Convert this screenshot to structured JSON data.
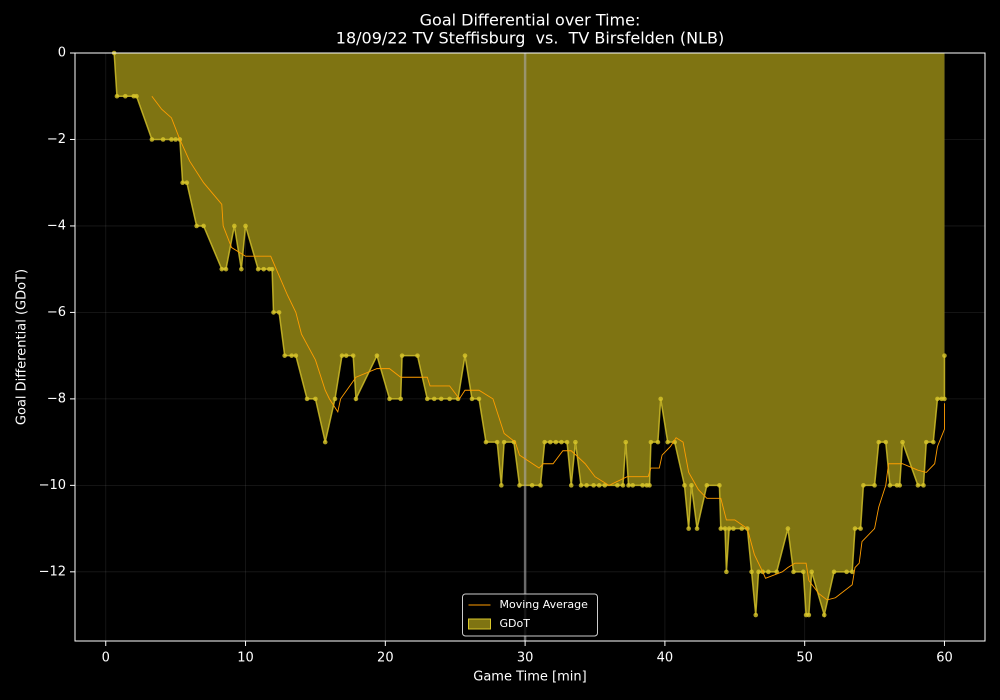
{
  "chart_data": {
    "type": "line",
    "title": "Goal Differential over Time:",
    "subtitle": "18/09/22 TV Steffisburg  vs.  TV Birsfelden (NLB)",
    "x_label": "Game Time [min]",
    "y_label": "Goal Differential (GDoT)",
    "xlim": [
      -2.2,
      62.9
    ],
    "ylim": [
      -13.6,
      0
    ],
    "xticks": [
      0,
      10,
      20,
      30,
      40,
      50,
      60
    ],
    "yticks": [
      0,
      {
        "value": -2,
        "label": "−2"
      },
      {
        "value": -4,
        "label": "−4"
      },
      {
        "value": -6,
        "label": "−6"
      },
      {
        "value": -8,
        "label": "−8"
      },
      {
        "value": -10,
        "label": "−10"
      },
      {
        "value": -12,
        "label": "−12"
      }
    ],
    "grid": true,
    "legend": "lower center",
    "vlines": [
      30
    ],
    "series": [
      {
        "name": "Moving Average",
        "color": "#ff9d00",
        "kind": "line",
        "x": [
          3.3,
          4.0,
          4.7,
          5.3,
          6.0,
          7.0,
          8.3,
          8.4,
          9.0,
          10.0,
          11.8,
          12.2,
          13.0,
          13.6,
          14.0,
          15.0,
          15.7,
          16.0,
          16.6,
          16.8,
          17.9,
          19.4,
          20.3,
          21.1,
          23.0,
          23.2,
          24.6,
          25.3,
          25.7,
          26.7,
          27.7,
          28.5,
          29.3,
          29.6,
          31.0,
          31.3,
          32.0,
          32.7,
          33.3,
          34.3,
          35.0,
          36.0,
          37.3,
          38.8,
          39.0,
          39.6,
          39.8,
          40.4,
          40.8,
          41.3,
          41.7,
          42.4,
          43.0,
          44.0,
          44.4,
          45.0,
          45.9,
          46.4,
          47.0,
          47.2,
          48.4,
          48.8,
          49.3,
          50.1,
          50.3,
          51.0,
          51.6,
          52.2,
          53.4,
          53.6,
          53.9,
          54.1,
          55.0,
          55.3,
          55.8,
          56.0,
          57.0,
          58.1,
          58.7,
          59.3,
          59.5,
          60.0,
          60.0
        ],
        "values": [
          -1.0,
          -1.3,
          -1.5,
          -2.0,
          -2.5,
          -3.0,
          -3.5,
          -4.0,
          -4.5,
          -4.7,
          -4.7,
          -5.0,
          -5.6,
          -6.0,
          -6.5,
          -7.1,
          -7.8,
          -8.0,
          -8.3,
          -8.0,
          -7.5,
          -7.3,
          -7.3,
          -7.5,
          -7.5,
          -7.7,
          -7.7,
          -8.0,
          -7.8,
          -7.8,
          -8.0,
          -8.8,
          -9.0,
          -9.3,
          -9.6,
          -9.5,
          -9.5,
          -9.2,
          -9.2,
          -9.5,
          -9.8,
          -10.0,
          -9.8,
          -9.8,
          -9.6,
          -9.6,
          -9.3,
          -9.1,
          -8.9,
          -9.0,
          -9.7,
          -10.1,
          -10.3,
          -10.3,
          -10.8,
          -10.8,
          -11.0,
          -11.6,
          -12.0,
          -12.15,
          -12.0,
          -11.9,
          -11.8,
          -11.8,
          -12.2,
          -12.5,
          -12.65,
          -12.6,
          -12.3,
          -11.9,
          -11.8,
          -11.3,
          -11.0,
          -10.5,
          -10.0,
          -9.5,
          -9.5,
          -9.65,
          -9.7,
          -9.5,
          -9.1,
          -8.7,
          -8.1
        ]
      },
      {
        "name": "GDoT",
        "color": "#d8c62a",
        "fill": "#7f7412",
        "kind": "area",
        "x": [
          0.6,
          0.8,
          1.4,
          2.0,
          2.2,
          3.3,
          4.1,
          4.7,
          5.0,
          5.3,
          5.5,
          5.8,
          6.5,
          7.0,
          8.3,
          8.6,
          9.2,
          9.7,
          10.0,
          10.9,
          11.3,
          11.7,
          11.9,
          12.0,
          12.4,
          12.8,
          13.3,
          13.6,
          14.4,
          15.0,
          15.7,
          16.4,
          16.9,
          17.2,
          17.7,
          17.9,
          19.4,
          20.3,
          21.1,
          21.2,
          22.3,
          23.0,
          23.5,
          24.0,
          24.6,
          25.2,
          25.7,
          26.2,
          26.7,
          27.2,
          28.0,
          28.3,
          28.5,
          29.2,
          29.6,
          30.5,
          31.1,
          31.4,
          31.8,
          32.2,
          32.6,
          33.0,
          33.3,
          33.6,
          34.0,
          34.4,
          34.9,
          35.3,
          35.7,
          36.6,
          37.0,
          37.2,
          37.4,
          37.7,
          38.4,
          38.7,
          38.9,
          39.0,
          39.5,
          39.7,
          40.2,
          40.7,
          41.4,
          41.7,
          41.9,
          42.3,
          43.0,
          43.9,
          44.0,
          44.3,
          44.4,
          44.6,
          44.9,
          45.5,
          45.9,
          46.2,
          46.5,
          46.7,
          47.0,
          47.4,
          48.0,
          48.8,
          49.2,
          49.9,
          50.1,
          50.3,
          50.5,
          51.4,
          52.1,
          53.0,
          53.4,
          53.6,
          54.0,
          54.2,
          55.0,
          55.3,
          55.8,
          56.1,
          56.6,
          56.8,
          57.0,
          58.1,
          58.5,
          58.7,
          59.2,
          59.5,
          59.8,
          60.0,
          60.0
        ],
        "values": [
          0,
          -1,
          -1,
          -1,
          -1,
          -2,
          -2,
          -2,
          -2,
          -2,
          -3,
          -3,
          -4,
          -4,
          -5,
          -5,
          -4,
          -5,
          -4,
          -5,
          -5,
          -5,
          -5,
          -6,
          -6,
          -7,
          -7,
          -7,
          -8,
          -8,
          -9,
          -8,
          -7,
          -7,
          -7,
          -8,
          -7,
          -8,
          -8,
          -7,
          -7,
          -8,
          -8,
          -8,
          -8,
          -8,
          -7,
          -8,
          -8,
          -9,
          -9,
          -10,
          -9,
          -9,
          -10,
          -10,
          -10,
          -9,
          -9,
          -9,
          -9,
          -9,
          -10,
          -9,
          -10,
          -10,
          -10,
          -10,
          -10,
          -10,
          -10,
          -9,
          -10,
          -10,
          -10,
          -10,
          -10,
          -9,
          -9,
          -8,
          -9,
          -9,
          -10,
          -11,
          -10,
          -11,
          -10,
          -10,
          -11,
          -11,
          -12,
          -11,
          -11,
          -11,
          -11,
          -12,
          -13,
          -12,
          -12,
          -12,
          -12,
          -11,
          -12,
          -12,
          -13,
          -13,
          -12,
          -13,
          -12,
          -12,
          -12,
          -11,
          -11,
          -10,
          -10,
          -9,
          -9,
          -10,
          -10,
          -10,
          -9,
          -10,
          -10,
          -9,
          -9,
          -8,
          -8,
          -8,
          -7
        ]
      }
    ]
  }
}
